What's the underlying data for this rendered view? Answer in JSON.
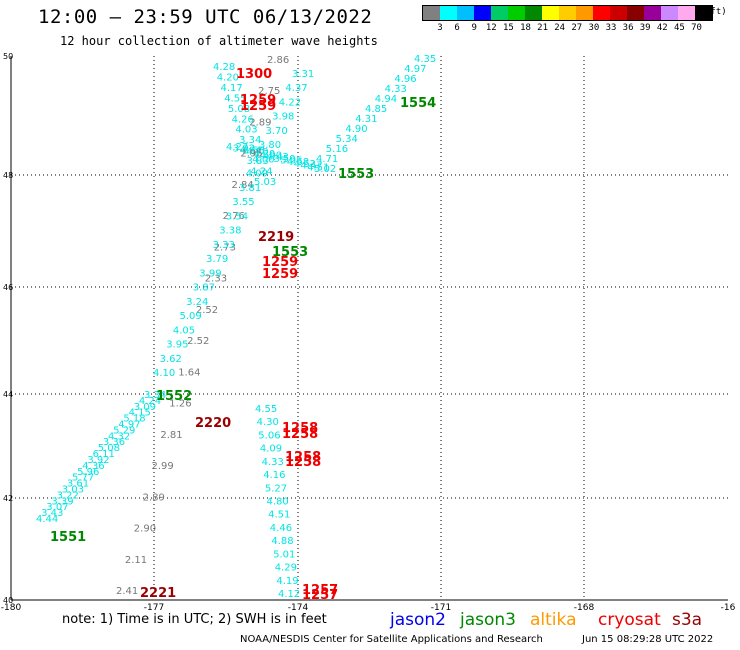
{
  "header": {
    "title": "12:00 – 23:59 UTC 06/13/2022",
    "subtitle": "12 hour collection of altimeter wave heights"
  },
  "legend": {
    "colors": [
      "#808080",
      "#00ffff",
      "#00bfff",
      "#0000ff",
      "#00cc66",
      "#00cc00",
      "#008800",
      "#ffff00",
      "#ffcc00",
      "#ff9900",
      "#ff0000",
      "#cc0000",
      "#880000",
      "#990099",
      "#cc88ff",
      "#ffaaee",
      "#000000"
    ],
    "ticks": [
      "3",
      "6",
      "9",
      "12",
      "15",
      "18",
      "21",
      "24",
      "27",
      "30",
      "33",
      "36",
      "39",
      "42",
      "45",
      "70"
    ],
    "unit": "(ft)"
  },
  "map": {
    "lon_ticks": [
      "-180",
      "-177",
      "-174",
      "-171",
      "-168",
      "-16"
    ],
    "lat_ticks": [
      "50",
      "48",
      "46",
      "44",
      "42",
      "40"
    ],
    "colors": {
      "cyan": "#00e5e5",
      "gray": "#777777",
      "red": "#ee0000",
      "darkred": "#990000",
      "green": "#008800"
    },
    "tracks": [
      {
        "color": "cyan",
        "values": [
          "4.35",
          "4.97",
          "4.96",
          "4.33",
          "4.94",
          "4.85",
          "4.31",
          "4.90",
          "5.34",
          "5.16",
          "4.71"
        ]
      },
      {
        "color": "cyan",
        "values": [
          "5.02",
          "4.51",
          "4.47",
          "4.62",
          "4.68",
          "5.05",
          "3.59",
          "4.43",
          "4.00",
          "4.39",
          "4.70",
          "4.84",
          "3.92",
          "4.27"
        ]
      },
      {
        "color": "cyan",
        "values": [
          "4.28",
          "4.20",
          "4.17",
          "4.55",
          "5.08",
          "4.26",
          "4.03",
          "3.34",
          "3.53",
          "3.83",
          "4.24",
          "5.03"
        ]
      },
      {
        "color": "gray",
        "values": [
          "2.86",
          "2.75",
          "2.89",
          "2.95",
          "2.84",
          "2.76",
          "2.73",
          "2.33",
          "2.52",
          "2.52",
          "1.64",
          "1.26",
          "2.81",
          "2.99",
          "2.89",
          "2.90",
          "2.11",
          "2.41"
        ]
      },
      {
        "color": "cyan",
        "values": [
          "3.31",
          "4.37",
          "4.22",
          "3.98",
          "3.70",
          "3.80",
          "4.00",
          "4.09",
          "3.81",
          "3.55",
          "3.54",
          "3.38",
          "3.33",
          "3.79",
          "3.99",
          "3.87",
          "3.24",
          "5.09",
          "4.05",
          "3.95",
          "3.62",
          "4.10"
        ]
      },
      {
        "color": "cyan",
        "values": [
          "3.34",
          "4.24",
          "3.09",
          "4.15",
          "5.18",
          "4.97",
          "5.29",
          "4.32",
          "3.36",
          "5.08",
          "6.11",
          "3.92",
          "4.36",
          "5.96",
          "5.77",
          "3.61",
          "3.03",
          "3.22",
          "3.39",
          "3.07",
          "3.43",
          "4.44"
        ]
      },
      {
        "color": "cyan",
        "values": [
          "4.55",
          "4.30",
          "5.06",
          "4.09",
          "4.33",
          "4.16",
          "5.27",
          "4.80",
          "4.51",
          "4.46",
          "4.88",
          "5.01",
          "4.29",
          "4.19",
          "4.12"
        ]
      }
    ],
    "labels": {
      "l1300": "1300",
      "l1259a": "1259",
      "l1259b": "1259",
      "l1259c": "1259",
      "l1259d": "1259",
      "l2219": "2219",
      "l1553a": "1553",
      "l1553b": "1553",
      "l1554": "1554",
      "l1552": "1552",
      "l2220": "2220",
      "l1258a": "1258",
      "l1258b": "1258",
      "l1258c": "1258",
      "l1258d": "1258",
      "l1551": "1551",
      "l2221": "2221",
      "l1257a": "1257",
      "l1257b": "1257"
    }
  },
  "footer": {
    "note": "note: 1) Time is in UTC; 2) SWH is in feet",
    "satellites": [
      {
        "name": "jason2",
        "color": "#0000ee"
      },
      {
        "name": "jason3",
        "color": "#008800"
      },
      {
        "name": "altika",
        "color": "#ff9900"
      },
      {
        "name": "cryosat",
        "color": "#ee0000"
      },
      {
        "name": "s3a",
        "color": "#990000"
      }
    ],
    "credit": "NOAA/NESDIS Center for Satellite Applications and Research",
    "timestamp": "Jun 15 08:29:28 UTC 2022"
  }
}
